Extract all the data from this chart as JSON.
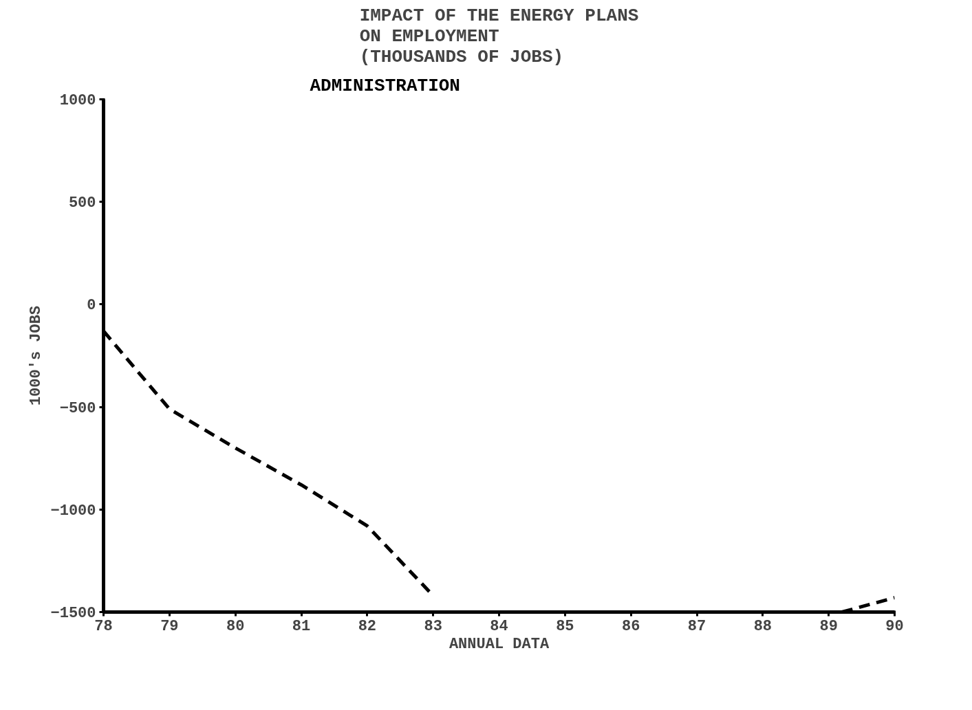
{
  "chart_data": {
    "type": "line",
    "title": "IMPACT OF THE ENERGY PLANS\nON EMPLOYMENT\n(THOUSANDS OF JOBS)",
    "xlabel": "ANNUAL DATA",
    "ylabel": "1000's JOBS",
    "series": [
      {
        "name": "ADMINISTRATION",
        "color": "#000000",
        "x": [
          78,
          79,
          80,
          81,
          82,
          83,
          84,
          89.2,
          90
        ],
        "values": [
          -130,
          -510,
          -700,
          -880,
          -1080,
          -1420,
          null,
          -1500,
          -1430
        ]
      }
    ],
    "xlim": [
      78,
      90
    ],
    "xticks": [
      78,
      79,
      80,
      81,
      82,
      83,
      84,
      85,
      86,
      87,
      88,
      89,
      90
    ],
    "ylim": [
      -1500,
      1000
    ],
    "yticks": [
      -1500,
      -1000,
      -500,
      0,
      500,
      1000
    ],
    "grid": false,
    "legend": false,
    "marker": "none",
    "line_style": "dashed"
  }
}
